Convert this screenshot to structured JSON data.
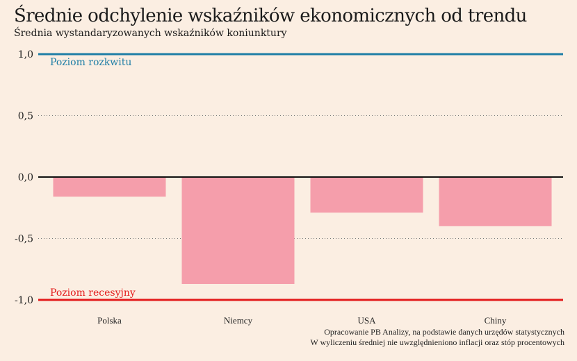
{
  "title": "Średnie odchylenie wskaźników ekonomicznych od trendu",
  "subtitle": "Średnia wystandaryzowanych wskaźników koniunktury",
  "footnote": {
    "line1": "Opracowanie PB Analizy, na podstawie danych urzędów statystycznych",
    "line2": "W wyliczeniu średniej nie uwzględnieniono inflacji oraz stóp procentowych"
  },
  "colors": {
    "background": "#fbeee2",
    "bar": "#f59eab",
    "boom_line": "#1f7ea6",
    "recession_line": "#e31b1b",
    "zero_line": "#111111"
  },
  "chart_data": {
    "type": "bar",
    "categories": [
      "Polska",
      "Niemcy",
      "USA",
      "Chiny"
    ],
    "values": [
      -0.16,
      -0.87,
      -0.29,
      -0.4
    ],
    "ylim": [
      -1.0,
      1.0
    ],
    "yticks": [
      1.0,
      0.5,
      0.0,
      -0.5,
      -1.0
    ],
    "ytick_labels": [
      "1,0",
      "0,5",
      "0,0",
      "-0,5",
      "-1,0"
    ],
    "grid": "dotted horizontal",
    "annotations": [
      {
        "label": "Poziom rozkwitu",
        "y": 1.0,
        "color": "#1f7ea6"
      },
      {
        "label": "Poziom recesyjny",
        "y": -1.0,
        "color": "#e31b1b"
      }
    ]
  }
}
